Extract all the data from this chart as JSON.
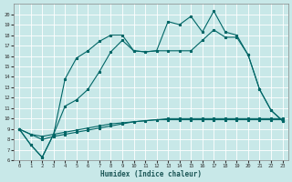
{
  "xlabel": "Humidex (Indice chaleur)",
  "background_color": "#c8e8e8",
  "grid_color": "#ffffff",
  "line_color": "#006666",
  "xlim": [
    -0.5,
    23.5
  ],
  "ylim": [
    6,
    21
  ],
  "xticks": [
    0,
    1,
    2,
    3,
    4,
    5,
    6,
    7,
    8,
    9,
    10,
    11,
    12,
    13,
    14,
    15,
    16,
    17,
    18,
    19,
    20,
    21,
    22,
    23
  ],
  "yticks": [
    6,
    7,
    8,
    9,
    10,
    11,
    12,
    13,
    14,
    15,
    16,
    17,
    18,
    19,
    20
  ],
  "curve1_x": [
    0,
    1,
    2,
    3,
    4,
    5,
    6,
    7,
    8,
    9,
    10,
    11,
    12,
    13,
    14,
    15,
    16,
    17,
    18,
    19,
    20,
    21,
    22,
    23
  ],
  "curve1_y": [
    9.0,
    7.5,
    6.3,
    8.5,
    13.8,
    15.8,
    16.5,
    17.4,
    18.0,
    18.0,
    16.5,
    16.4,
    16.5,
    19.3,
    19.0,
    19.8,
    18.3,
    20.3,
    18.3,
    18.0,
    16.1,
    12.8,
    10.8,
    9.8
  ],
  "curve2_x": [
    0,
    1,
    2,
    3,
    4,
    5,
    6,
    7,
    8,
    9,
    10,
    11,
    12,
    13,
    14,
    15,
    16,
    17,
    18,
    19,
    20,
    21,
    22,
    23
  ],
  "curve2_y": [
    9.0,
    7.5,
    6.3,
    8.5,
    11.2,
    11.8,
    12.8,
    14.5,
    16.4,
    17.5,
    16.5,
    16.4,
    16.5,
    16.5,
    16.5,
    16.5,
    17.5,
    18.5,
    17.8,
    17.8,
    16.1,
    12.8,
    10.8,
    9.8
  ],
  "curve3_x": [
    0,
    1,
    2,
    3,
    4,
    5,
    6,
    7,
    8,
    9,
    10,
    11,
    12,
    13,
    14,
    15,
    16,
    17,
    18,
    19,
    20,
    21,
    22,
    23
  ],
  "curve3_y": [
    9.0,
    8.5,
    8.3,
    8.5,
    8.7,
    8.9,
    9.1,
    9.3,
    9.5,
    9.6,
    9.7,
    9.8,
    9.9,
    10.0,
    10.0,
    10.0,
    10.0,
    10.0,
    10.0,
    10.0,
    10.0,
    10.0,
    10.0,
    10.0
  ],
  "curve4_x": [
    0,
    1,
    2,
    3,
    4,
    5,
    6,
    7,
    8,
    9,
    10,
    11,
    12,
    13,
    14,
    15,
    16,
    17,
    18,
    19,
    20,
    21,
    22,
    23
  ],
  "curve4_y": [
    9.0,
    8.5,
    8.0,
    8.3,
    8.5,
    8.7,
    8.9,
    9.1,
    9.3,
    9.5,
    9.7,
    9.8,
    9.9,
    9.9,
    9.9,
    9.9,
    9.9,
    9.9,
    9.9,
    9.9,
    9.9,
    9.9,
    9.9,
    9.9
  ]
}
